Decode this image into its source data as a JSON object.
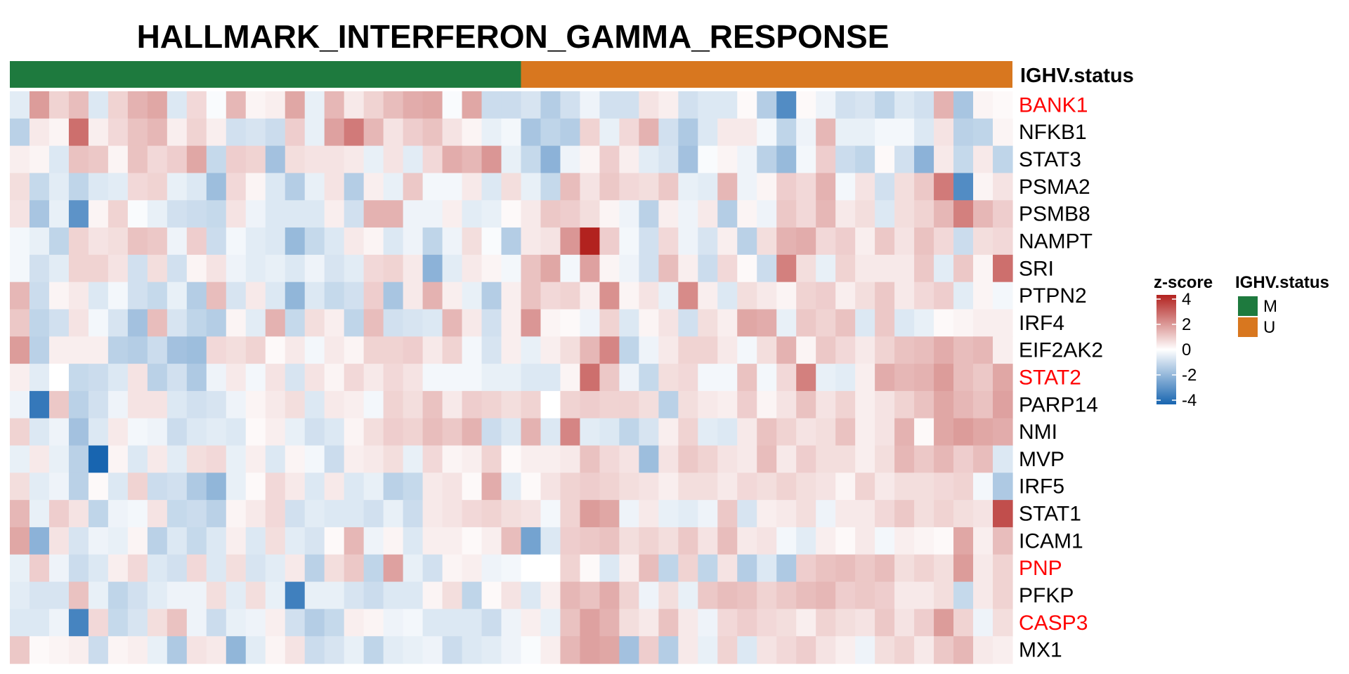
{
  "chart_data": {
    "type": "heatmap",
    "title": "HALLMARK_INTERFERON_GAMMA_RESPONSE",
    "annotation": {
      "label": "IGHV.status",
      "groups": [
        {
          "name": "M",
          "count": 26,
          "color": "#1e7a3e"
        },
        {
          "name": "U",
          "count": 25,
          "color": "#d8771f"
        }
      ]
    },
    "rows": [
      {
        "name": "BANK1",
        "color": "#ff0000"
      },
      {
        "name": "NFKB1",
        "color": "#000000"
      },
      {
        "name": "STAT3",
        "color": "#000000"
      },
      {
        "name": "PSMA2",
        "color": "#000000"
      },
      {
        "name": "PSMB8",
        "color": "#000000"
      },
      {
        "name": "NAMPT",
        "color": "#000000"
      },
      {
        "name": "SRI",
        "color": "#000000"
      },
      {
        "name": "PTPN2",
        "color": "#000000"
      },
      {
        "name": "IRF4",
        "color": "#000000"
      },
      {
        "name": "EIF2AK2",
        "color": "#000000"
      },
      {
        "name": "STAT2",
        "color": "#ff0000"
      },
      {
        "name": "PARP14",
        "color": "#000000"
      },
      {
        "name": "NMI",
        "color": "#000000"
      },
      {
        "name": "MVP",
        "color": "#000000"
      },
      {
        "name": "IRF5",
        "color": "#000000"
      },
      {
        "name": "STAT1",
        "color": "#000000"
      },
      {
        "name": "ICAM1",
        "color": "#000000"
      },
      {
        "name": "PNP",
        "color": "#ff0000"
      },
      {
        "name": "PFKP",
        "color": "#000000"
      },
      {
        "name": "CASP3",
        "color": "#ff0000"
      },
      {
        "name": "MX1",
        "color": "#000000"
      }
    ],
    "values": [
      [
        -0.5,
        1.8,
        0.8,
        1.2,
        -0.6,
        0.8,
        1.4,
        1.6,
        -0.6,
        0.7,
        -0.1,
        1.3,
        0.2,
        0.3,
        1.6,
        -0.4,
        1.3,
        0.4,
        0.8,
        1.2,
        1.5,
        1.6,
        -0.1,
        1.6,
        -0.9,
        -0.9,
        -0.7,
        -1.3,
        -0.8,
        -0.3,
        -0.8,
        -0.8,
        0.5,
        0.3,
        -0.8,
        -0.6,
        -0.6,
        0.1,
        -1.3,
        -3.0,
        0.1,
        -0.3,
        -0.8,
        -0.7,
        -1.1,
        -0.6,
        -0.8,
        1.4,
        -1.5,
        0.2,
        0.1
      ],
      [
        -1.2,
        0.4,
        0.2,
        2.6,
        0.3,
        0.7,
        1.1,
        1.3,
        0.3,
        0.8,
        0.3,
        -0.8,
        -0.7,
        -0.9,
        0.9,
        -0.4,
        1.7,
        2.4,
        1.3,
        0.5,
        0.9,
        1.1,
        0.5,
        0.2,
        -0.4,
        -0.2,
        -1.5,
        -1.1,
        -1.3,
        0.8,
        -0.4,
        0.7,
        1.4,
        -0.8,
        -1.4,
        -0.6,
        0.4,
        0.4,
        -0.2,
        -1.1,
        -0.3,
        1.3,
        -0.4,
        -0.4,
        -0.2,
        -0.2,
        -0.6,
        0.5,
        -1.2,
        -1.1,
        0.2
      ],
      [
        0.3,
        0.2,
        -0.6,
        1.1,
        1.0,
        0.2,
        1.1,
        0.7,
        0.9,
        1.6,
        -1.0,
        0.9,
        0.8,
        -1.6,
        0.6,
        0.5,
        0.5,
        0.4,
        -0.4,
        0.5,
        -0.5,
        0.7,
        1.5,
        1.3,
        1.9,
        -0.4,
        -1.0,
        -2.0,
        -0.3,
        0.2,
        0.9,
        0.3,
        -0.5,
        -0.7,
        -1.6,
        -0.1,
        0.2,
        -0.3,
        -1.2,
        -1.8,
        -0.2,
        0.9,
        -0.9,
        -1.1,
        0.1,
        -0.8,
        -2.0,
        0.4,
        -1.0,
        0.4,
        -1.1
      ],
      [
        0.6,
        -1.0,
        -0.5,
        -1.1,
        -0.6,
        -0.5,
        0.7,
        0.8,
        -0.4,
        -0.6,
        -1.7,
        0.7,
        0.2,
        -0.6,
        -1.3,
        -0.4,
        0.5,
        -1.3,
        0.3,
        -0.4,
        1.0,
        -0.2,
        -0.2,
        0.4,
        -0.6,
        0.6,
        -0.4,
        -1.0,
        1.2,
        0.5,
        1.0,
        0.7,
        0.6,
        1.0,
        -0.4,
        -0.5,
        1.3,
        -0.3,
        0.2,
        0.9,
        0.7,
        1.4,
        -0.2,
        0.5,
        -0.8,
        0.6,
        1.0,
        2.4,
        -3.0,
        0.2,
        0.5
      ],
      [
        0.5,
        -1.5,
        -0.4,
        -2.8,
        0.2,
        0.8,
        -0.1,
        -0.4,
        -0.8,
        -0.9,
        -1.0,
        0.5,
        -0.3,
        -0.6,
        -0.6,
        -0.6,
        0.3,
        -0.8,
        1.4,
        1.4,
        -0.3,
        -0.3,
        0.3,
        -0.5,
        -0.4,
        0.1,
        0.4,
        1.0,
        0.9,
        0.6,
        0.2,
        -0.3,
        -1.2,
        0.3,
        -0.3,
        0.4,
        -1.3,
        0.2,
        -0.3,
        1.0,
        0.7,
        1.3,
        0.4,
        0.6,
        -0.6,
        0.6,
        0.8,
        1.3,
        2.3,
        1.3,
        0.9
      ],
      [
        -0.2,
        -0.4,
        -1.1,
        0.8,
        0.5,
        0.6,
        1.1,
        1.0,
        -0.3,
        0.9,
        -0.9,
        -0.2,
        -0.5,
        -0.6,
        -1.8,
        -1.0,
        -0.6,
        0.4,
        0.2,
        -0.6,
        -0.3,
        -1.1,
        -0.3,
        0.6,
        -0.1,
        -1.3,
        0.4,
        0.5,
        1.9,
        4.0,
        0.9,
        -0.2,
        -0.8,
        0.7,
        -0.3,
        -0.7,
        0.3,
        -1.2,
        0.6,
        1.4,
        1.5,
        0.7,
        0.9,
        0.3,
        1.0,
        0.5,
        1.1,
        0.7,
        -0.9,
        0.6,
        0.7
      ],
      [
        -0.2,
        -0.8,
        -0.5,
        0.8,
        0.8,
        0.5,
        -0.8,
        0.6,
        -0.8,
        0.2,
        0.5,
        -0.3,
        -0.5,
        -0.4,
        -0.6,
        -0.3,
        -0.7,
        -0.5,
        0.7,
        0.8,
        0.4,
        -2.0,
        -0.5,
        0.4,
        0.2,
        -0.2,
        1.1,
        1.6,
        -0.2,
        1.7,
        0.2,
        -0.3,
        -0.8,
        1.2,
        0.3,
        -0.9,
        0.7,
        0.1,
        -0.9,
        2.3,
        0.6,
        -0.4,
        0.8,
        0.4,
        0.4,
        0.4,
        1.0,
        -0.5,
        1.0,
        0.2,
        2.6
      ],
      [
        1.3,
        -0.9,
        0.2,
        0.4,
        -0.6,
        -0.2,
        -0.8,
        -1.0,
        -0.4,
        -1.3,
        1.2,
        -0.7,
        0.4,
        -0.6,
        -1.9,
        -0.6,
        -1.0,
        -0.8,
        0.9,
        -1.5,
        0.4,
        1.4,
        0.3,
        -0.4,
        -1.3,
        0.3,
        1.1,
        0.7,
        0.8,
        0.3,
        2.0,
        0.2,
        0.5,
        -0.4,
        2.1,
        0.3,
        -0.6,
        0.6,
        0.4,
        0.2,
        0.8,
        0.9,
        0.3,
        0.6,
        1.0,
        0.4,
        0.7,
        0.9,
        -0.5,
        0.2,
        -0.2
      ],
      [
        1.0,
        -1.1,
        -0.8,
        0.5,
        -0.2,
        -0.7,
        -1.6,
        1.2,
        -0.7,
        -1.1,
        -1.3,
        0.2,
        -0.5,
        1.4,
        -1.0,
        0.6,
        0.3,
        -1.1,
        1.2,
        -0.8,
        -0.7,
        -0.6,
        1.3,
        0.4,
        -0.8,
        0.3,
        1.9,
        0.2,
        0.1,
        -0.3,
        0.8,
        -0.6,
        0.2,
        0.5,
        -0.8,
        0.6,
        0.3,
        1.6,
        1.5,
        -0.4,
        1.0,
        0.8,
        1.1,
        -0.6,
        1.0,
        -0.6,
        -0.4,
        0.1,
        0.2,
        0.3,
        0.3
      ],
      [
        1.8,
        -1.2,
        0.3,
        0.3,
        0.3,
        -1.2,
        -1.3,
        -0.9,
        -1.6,
        -1.7,
        0.7,
        0.6,
        0.8,
        0.1,
        0.4,
        -0.2,
        0.4,
        0.2,
        0.8,
        0.8,
        0.9,
        0.4,
        0.8,
        -0.2,
        -0.7,
        0.3,
        -0.4,
        0.3,
        0.6,
        1.3,
        2.2,
        -1.1,
        -0.3,
        0.4,
        0.8,
        0.8,
        0.4,
        -0.2,
        0.6,
        1.4,
        0.2,
        1.0,
        0.7,
        0.4,
        0.8,
        1.1,
        1.2,
        1.5,
        1.2,
        1.3,
        0.3
      ],
      [
        0.3,
        -0.5,
        0.0,
        -1.0,
        -0.9,
        -0.6,
        0.5,
        -1.2,
        -0.8,
        -1.4,
        -0.3,
        0.4,
        -0.2,
        0.5,
        -0.7,
        0.5,
        0.2,
        0.7,
        0.4,
        0.7,
        0.5,
        -0.2,
        -0.2,
        -0.2,
        -0.4,
        -0.4,
        -0.6,
        -0.6,
        0.2,
        2.6,
        1.0,
        -0.3,
        -1.0,
        0.6,
        0.7,
        -0.2,
        -0.2,
        1.1,
        -0.2,
        0.7,
        2.3,
        -0.4,
        -0.5,
        0.3,
        1.5,
        1.3,
        1.4,
        1.8,
        1.2,
        1.0,
        1.6
      ],
      [
        -0.3,
        -3.5,
        1.0,
        -1.2,
        -0.8,
        -0.3,
        0.5,
        0.5,
        -0.6,
        -0.8,
        -0.7,
        -0.3,
        0.2,
        0.4,
        0.6,
        -0.6,
        0.4,
        0.3,
        -0.2,
        0.8,
        0.6,
        1.1,
        0.4,
        0.9,
        0.8,
        0.6,
        0.8,
        0.0,
        0.8,
        0.9,
        0.8,
        0.8,
        0.6,
        -1.2,
        0.6,
        0.4,
        0.3,
        0.9,
        0.2,
        0.5,
        1.1,
        0.5,
        0.8,
        0.3,
        0.5,
        0.8,
        1.1,
        1.6,
        1.3,
        1.1,
        1.7
      ],
      [
        0.8,
        -0.6,
        -0.3,
        -1.6,
        -0.6,
        0.4,
        -0.2,
        -0.3,
        -0.9,
        -0.6,
        -0.5,
        -0.6,
        0.1,
        0.3,
        -0.4,
        -0.8,
        -0.6,
        0.2,
        0.6,
        0.9,
        0.8,
        1.2,
        1.0,
        1.4,
        -0.9,
        -0.6,
        1.4,
        -0.6,
        2.2,
        -0.5,
        -0.6,
        -1.1,
        -0.7,
        0.3,
        0.8,
        -0.5,
        -0.6,
        0.4,
        1.1,
        0.8,
        0.5,
        0.6,
        1.1,
        0.3,
        0.5,
        1.4,
        0.1,
        1.6,
        1.8,
        1.6,
        1.5
      ],
      [
        -0.4,
        0.4,
        -0.4,
        -1.2,
        -4.0,
        0.2,
        -0.6,
        0.4,
        -0.5,
        0.6,
        0.7,
        -0.4,
        0.3,
        -0.6,
        0.2,
        -0.2,
        -0.9,
        0.3,
        0.4,
        0.6,
        -0.4,
        0.7,
        0.2,
        0.3,
        0.8,
        0.1,
        0.3,
        0.3,
        0.4,
        1.1,
        0.7,
        0.5,
        -1.7,
        0.5,
        1.0,
        0.8,
        0.5,
        0.4,
        1.2,
        0.4,
        0.9,
        0.6,
        0.6,
        0.3,
        0.6,
        1.3,
        1.0,
        1.3,
        0.9,
        1.2,
        -0.6
      ],
      [
        0.6,
        -0.5,
        -0.3,
        -1.2,
        0.1,
        -0.6,
        0.8,
        -0.9,
        -0.8,
        -1.4,
        -1.9,
        -0.4,
        0.1,
        0.7,
        0.4,
        -0.6,
        0.4,
        -0.6,
        -0.4,
        -1.2,
        -1.0,
        0.4,
        0.5,
        0.1,
        1.5,
        -0.5,
        0.1,
        0.5,
        0.8,
        0.9,
        0.8,
        0.6,
        0.5,
        0.3,
        0.6,
        0.6,
        0.4,
        0.7,
        0.6,
        0.8,
        0.6,
        0.5,
        0.2,
        0.8,
        0.4,
        0.6,
        0.6,
        0.7,
        0.8,
        -0.2,
        -1.4
      ],
      [
        1.3,
        -0.4,
        0.9,
        0.5,
        -1.1,
        -0.3,
        -0.2,
        0.5,
        -1.0,
        -0.9,
        -1.2,
        0.2,
        0.4,
        0.7,
        -0.8,
        -0.5,
        -0.6,
        -0.6,
        -0.8,
        -0.4,
        -0.9,
        0.4,
        0.5,
        0.7,
        0.8,
        0.6,
        0.5,
        -0.2,
        0.8,
        1.8,
        1.6,
        -0.3,
        0.4,
        -0.4,
        -0.5,
        -0.3,
        1.0,
        -0.7,
        0.3,
        0.4,
        0.6,
        -0.3,
        0.4,
        0.4,
        0.7,
        1.0,
        0.6,
        0.8,
        0.6,
        0.5,
        3.2
      ],
      [
        1.6,
        -2.0,
        0.5,
        -0.7,
        -0.3,
        -0.4,
        0.2,
        -1.2,
        -0.6,
        -1.0,
        -0.6,
        0.3,
        -0.6,
        0.6,
        -0.5,
        -0.7,
        0.1,
        1.3,
        -0.3,
        0.2,
        -0.6,
        0.3,
        0.3,
        0.1,
        0.3,
        1.2,
        -2.4,
        -0.6,
        0.9,
        1.0,
        1.1,
        0.6,
        0.8,
        0.6,
        1.0,
        0.5,
        1.2,
        0.4,
        0.5,
        -0.2,
        -0.5,
        0.3,
        0.1,
        0.4,
        -0.2,
        0.3,
        0.2,
        0.1,
        1.6,
        0.3,
        1.2
      ],
      [
        -0.4,
        0.9,
        -0.3,
        -0.9,
        -0.6,
        0.3,
        0.7,
        -0.6,
        -0.8,
        0.7,
        -0.6,
        0.6,
        -0.7,
        -0.5,
        0.4,
        -1.2,
        0.6,
        1.0,
        -1.1,
        1.7,
        -0.4,
        -0.8,
        0.2,
        0.3,
        -0.3,
        -0.2,
        0.0,
        0.0,
        0.8,
        0.1,
        -0.6,
        0.3,
        1.2,
        -1.1,
        0.8,
        -1.1,
        0.5,
        -1.3,
        -0.6,
        -1.4,
        0.9,
        1.1,
        1.2,
        1.0,
        1.2,
        0.6,
        0.8,
        0.6,
        1.8,
        0.4,
        0.8
      ],
      [
        -0.5,
        -0.7,
        -0.7,
        1.1,
        -0.4,
        -1.1,
        -0.8,
        -0.5,
        -0.3,
        -0.3,
        0.6,
        -0.5,
        0.6,
        -0.4,
        -3.3,
        -0.4,
        -0.4,
        -0.7,
        -0.9,
        -0.6,
        -0.6,
        0.2,
        0.6,
        -1.1,
        0.1,
        0.5,
        -0.6,
        0.3,
        1.3,
        1.1,
        1.5,
        0.8,
        -0.3,
        0.6,
        -0.4,
        1.0,
        1.2,
        1.1,
        0.8,
        1.0,
        1.2,
        1.3,
        0.9,
        1.0,
        0.9,
        0.4,
        0.4,
        0.6,
        -1.0,
        0.4,
        0.8
      ],
      [
        -0.6,
        -0.6,
        -0.3,
        -3.2,
        0.7,
        -1.0,
        -0.7,
        0.6,
        1.1,
        -0.3,
        -0.9,
        -0.4,
        -0.3,
        0.3,
        -0.8,
        -1.3,
        -1.0,
        0.3,
        0.2,
        -0.3,
        -0.2,
        -0.6,
        -0.6,
        -0.6,
        -0.9,
        -0.3,
        0.3,
        -0.4,
        1.1,
        1.7,
        1.4,
        0.6,
        0.4,
        1.1,
        0.4,
        -0.3,
        0.7,
        0.9,
        0.7,
        0.6,
        0.3,
        0.8,
        0.6,
        0.5,
        1.0,
        0.5,
        0.9,
        1.8,
        0.8,
        -0.3,
        0.6
      ],
      [
        1.0,
        0.1,
        0.2,
        0.3,
        -0.9,
        0.2,
        0.3,
        -0.4,
        -1.4,
        0.5,
        0.4,
        -1.9,
        -0.5,
        0.2,
        0.5,
        -0.9,
        -0.7,
        -0.4,
        -1.1,
        -0.5,
        -0.4,
        -0.3,
        -0.9,
        -0.6,
        -0.5,
        -0.3,
        -0.1,
        0.3,
        1.3,
        1.7,
        1.6,
        -1.6,
        0.9,
        -1.3,
        0.4,
        -0.4,
        0.8,
        -0.6,
        0.5,
        0.7,
        0.9,
        0.5,
        0.3,
        -0.3,
        0.6,
        0.8,
        0.4,
        1.0,
        1.3,
        0.4,
        0.3
      ]
    ],
    "legend": {
      "title": "z-score",
      "ticks": [
        "4",
        "2",
        "0",
        "-2",
        "-4"
      ],
      "range": [
        -4,
        4
      ],
      "colors": {
        "low": "#1865b0",
        "mid": "#ffffff",
        "high": "#b2221f"
      }
    }
  }
}
